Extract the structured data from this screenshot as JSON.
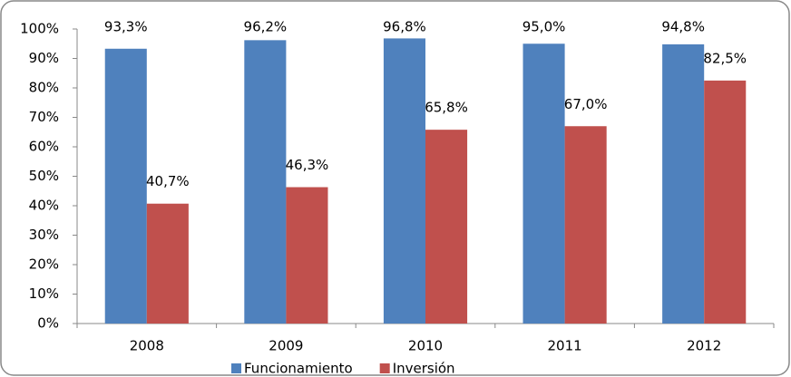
{
  "chart_data": {
    "type": "bar",
    "categories": [
      "2008",
      "2009",
      "2010",
      "2011",
      "2012"
    ],
    "series": [
      {
        "name": "Funcionamiento",
        "color": "#4f81bd",
        "values": [
          93.3,
          96.2,
          96.8,
          95.0,
          94.8
        ],
        "value_labels": [
          "93,3%",
          "96,2%",
          "96,8%",
          "95,0%",
          "94,8%"
        ]
      },
      {
        "name": "Inversión",
        "color": "#c0504d",
        "values": [
          40.7,
          46.3,
          65.8,
          67.0,
          82.5
        ],
        "value_labels": [
          "40,7%",
          "46,3%",
          "65,8%",
          "67,0%",
          "82,5%"
        ]
      }
    ],
    "ylim": [
      0,
      100
    ],
    "yticks": [
      {
        "value": 0,
        "label": "0%"
      },
      {
        "value": 10,
        "label": "10%"
      },
      {
        "value": 20,
        "label": "20%"
      },
      {
        "value": 30,
        "label": "30%"
      },
      {
        "value": 40,
        "label": "40%"
      },
      {
        "value": 50,
        "label": "50%"
      },
      {
        "value": 60,
        "label": "60%"
      },
      {
        "value": 70,
        "label": "70%"
      },
      {
        "value": 80,
        "label": "80%"
      },
      {
        "value": 90,
        "label": "90%"
      },
      {
        "value": 100,
        "label": "100%"
      }
    ],
    "legend": "bottom"
  }
}
